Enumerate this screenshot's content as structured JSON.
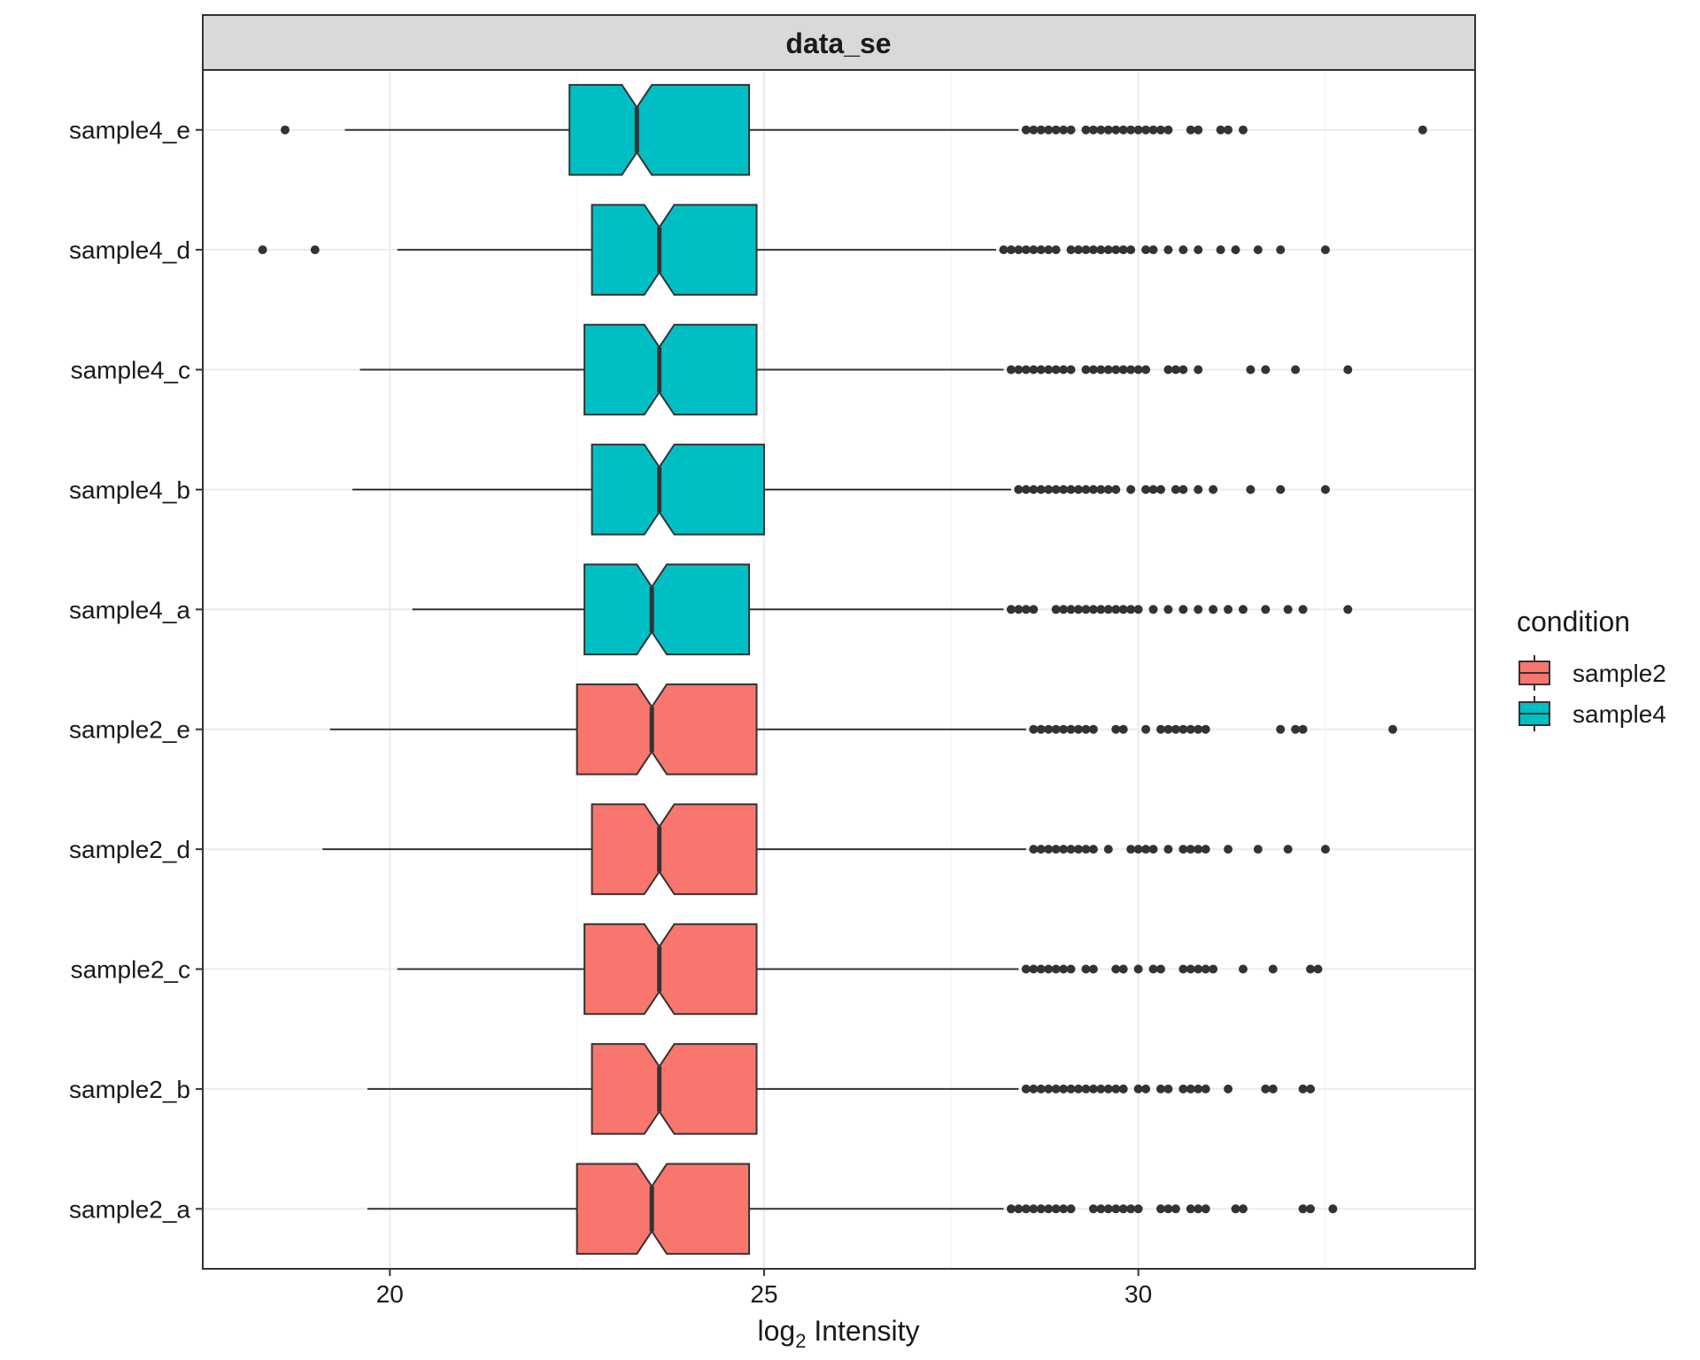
{
  "chart_data": {
    "type": "boxplot",
    "orientation": "horizontal",
    "facet_title": "data_se",
    "xlabel": {
      "base": "log",
      "subscript": "2",
      "rest": " Intensity"
    },
    "ylabel": "",
    "xlim": [
      17.5,
      34.5
    ],
    "x_ticks": [
      20,
      25,
      30
    ],
    "grid": true,
    "notched": true,
    "legend": {
      "title": "condition",
      "position": "right",
      "entries": [
        {
          "label": "sample2",
          "color": "#F8766D"
        },
        {
          "label": "sample4",
          "color": "#00BFC4"
        }
      ]
    },
    "colors": {
      "sample2": "#F8766D",
      "sample4": "#00BFC4",
      "strip": "#D9D9D9",
      "outlier": "#333333"
    },
    "categories": [
      "sample2_a",
      "sample2_b",
      "sample2_c",
      "sample2_d",
      "sample2_e",
      "sample4_a",
      "sample4_b",
      "sample4_c",
      "sample4_d",
      "sample4_e"
    ],
    "series": [
      {
        "label": "sample2_a",
        "condition": "sample2",
        "whisker_low": 19.7,
        "q1": 22.5,
        "median": 23.5,
        "q3": 24.8,
        "whisker_high": 28.2,
        "outliers": [
          28.3,
          28.4,
          28.5,
          28.6,
          28.7,
          28.8,
          28.9,
          29.0,
          29.1,
          29.4,
          29.5,
          29.6,
          29.7,
          29.8,
          29.9,
          30.0,
          30.3,
          30.4,
          30.5,
          30.7,
          30.8,
          30.9,
          31.3,
          31.4,
          32.2,
          32.3,
          32.6
        ]
      },
      {
        "label": "sample2_b",
        "condition": "sample2",
        "whisker_low": 19.7,
        "q1": 22.7,
        "median": 23.6,
        "q3": 24.9,
        "whisker_high": 28.4,
        "outliers": [
          28.5,
          28.6,
          28.7,
          28.8,
          28.9,
          29.0,
          29.1,
          29.2,
          29.3,
          29.4,
          29.5,
          29.6,
          29.7,
          29.8,
          30.0,
          30.1,
          30.3,
          30.4,
          30.6,
          30.7,
          30.8,
          30.9,
          31.2,
          31.7,
          31.8,
          32.2,
          32.3
        ]
      },
      {
        "label": "sample2_c",
        "condition": "sample2",
        "whisker_low": 20.1,
        "q1": 22.6,
        "median": 23.6,
        "q3": 24.9,
        "whisker_high": 28.4,
        "outliers": [
          28.5,
          28.6,
          28.7,
          28.8,
          28.9,
          29.0,
          29.1,
          29.3,
          29.4,
          29.7,
          29.8,
          30.0,
          30.2,
          30.3,
          30.6,
          30.7,
          30.8,
          30.9,
          31.0,
          31.4,
          31.8,
          32.3,
          32.4
        ]
      },
      {
        "label": "sample2_d",
        "condition": "sample2",
        "whisker_low": 19.1,
        "q1": 22.7,
        "median": 23.6,
        "q3": 24.9,
        "whisker_high": 28.5,
        "outliers": [
          28.6,
          28.7,
          28.8,
          28.9,
          29.0,
          29.1,
          29.2,
          29.3,
          29.4,
          29.6,
          29.9,
          30.0,
          30.1,
          30.2,
          30.4,
          30.6,
          30.7,
          30.8,
          30.9,
          31.2,
          31.6,
          32.0,
          32.5
        ]
      },
      {
        "label": "sample2_e",
        "condition": "sample2",
        "whisker_low": 19.2,
        "q1": 22.5,
        "median": 23.5,
        "q3": 24.9,
        "whisker_high": 28.5,
        "outliers": [
          28.6,
          28.7,
          28.8,
          28.9,
          29.0,
          29.1,
          29.2,
          29.3,
          29.4,
          29.7,
          29.8,
          30.1,
          30.3,
          30.4,
          30.5,
          30.6,
          30.7,
          30.8,
          30.9,
          31.9,
          32.1,
          32.2,
          33.4
        ]
      },
      {
        "label": "sample4_a",
        "condition": "sample4",
        "whisker_low": 20.3,
        "q1": 22.6,
        "median": 23.5,
        "q3": 24.8,
        "whisker_high": 28.2,
        "outliers": [
          28.3,
          28.4,
          28.5,
          28.6,
          28.9,
          29.0,
          29.1,
          29.2,
          29.3,
          29.4,
          29.5,
          29.6,
          29.7,
          29.8,
          29.9,
          30.0,
          30.2,
          30.4,
          30.6,
          30.8,
          31.0,
          31.2,
          31.4,
          31.7,
          32.0,
          32.2,
          32.8
        ]
      },
      {
        "label": "sample4_b",
        "condition": "sample4",
        "whisker_low": 19.5,
        "q1": 22.7,
        "median": 23.6,
        "q3": 25.0,
        "whisker_high": 28.3,
        "outliers": [
          28.4,
          28.5,
          28.6,
          28.7,
          28.8,
          28.9,
          29.0,
          29.1,
          29.2,
          29.3,
          29.4,
          29.5,
          29.6,
          29.7,
          29.9,
          30.1,
          30.2,
          30.3,
          30.5,
          30.6,
          30.8,
          31.0,
          31.5,
          31.9,
          32.5
        ]
      },
      {
        "label": "sample4_c",
        "condition": "sample4",
        "whisker_low": 19.6,
        "q1": 22.6,
        "median": 23.6,
        "q3": 24.9,
        "whisker_high": 28.2,
        "outliers": [
          28.3,
          28.4,
          28.5,
          28.6,
          28.7,
          28.8,
          28.9,
          29.0,
          29.1,
          29.3,
          29.4,
          29.5,
          29.6,
          29.7,
          29.8,
          29.9,
          30.0,
          30.1,
          30.4,
          30.5,
          30.6,
          30.8,
          31.5,
          31.7,
          32.1,
          32.8
        ]
      },
      {
        "label": "sample4_d",
        "condition": "sample4",
        "whisker_low": 20.1,
        "q1": 22.7,
        "median": 23.6,
        "q3": 24.9,
        "whisker_high": 28.1,
        "outliers": [
          18.3,
          19.0,
          28.2,
          28.3,
          28.4,
          28.5,
          28.6,
          28.7,
          28.8,
          28.9,
          29.1,
          29.2,
          29.3,
          29.4,
          29.5,
          29.6,
          29.7,
          29.8,
          29.9,
          30.1,
          30.2,
          30.4,
          30.6,
          30.8,
          31.1,
          31.3,
          31.6,
          31.9,
          32.5
        ]
      },
      {
        "label": "sample4_e",
        "condition": "sample4",
        "whisker_low": 19.4,
        "q1": 22.4,
        "median": 23.3,
        "q3": 24.8,
        "whisker_high": 28.4,
        "outliers": [
          18.6,
          28.5,
          28.6,
          28.7,
          28.8,
          28.9,
          29.0,
          29.1,
          29.3,
          29.4,
          29.5,
          29.6,
          29.7,
          29.8,
          29.9,
          30.0,
          30.1,
          30.2,
          30.3,
          30.4,
          30.7,
          30.8,
          31.1,
          31.2,
          31.4,
          33.8
        ]
      }
    ]
  }
}
